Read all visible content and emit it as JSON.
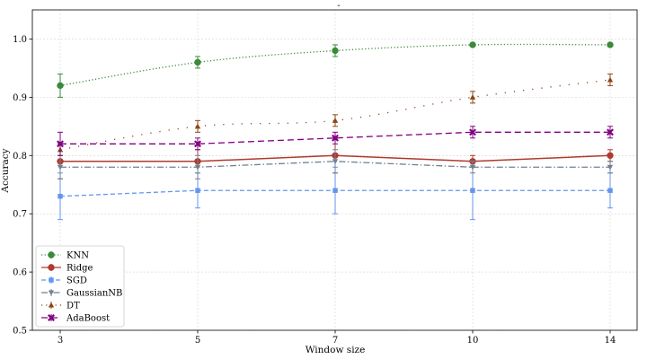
{
  "chart_data": {
    "type": "line",
    "title": "-",
    "xlabel": "Window size",
    "ylabel": "Accuracy",
    "categories": [
      "3",
      "5",
      "7",
      "10",
      "14"
    ],
    "ylim": [
      0.5,
      1.05
    ],
    "yticks": [
      "0.5",
      "0.6",
      "0.7",
      "0.8",
      "0.9",
      "1.0"
    ],
    "yticks_values": [
      0.5,
      0.6,
      0.7,
      0.8,
      0.9,
      1.0
    ],
    "grid": true,
    "legend_position": "bottom-left",
    "series": [
      {
        "name": "KNN",
        "color": "#3a8a3a",
        "dash": "dotted",
        "marker": "circle",
        "values": [
          0.92,
          0.96,
          0.98,
          0.99,
          0.99
        ],
        "errors": [
          0.02,
          0.01,
          0.01,
          0.0,
          0.0
        ]
      },
      {
        "name": "Ridge",
        "color": "#b03a2e",
        "dash": "solid",
        "marker": "circle",
        "values": [
          0.79,
          0.79,
          0.8,
          0.79,
          0.8
        ],
        "errors": [
          0.03,
          0.02,
          0.03,
          0.01,
          0.01
        ]
      },
      {
        "name": "SGD",
        "color": "#6495ed",
        "dash": "dashed",
        "marker": "square",
        "values": [
          0.73,
          0.74,
          0.74,
          0.74,
          0.74
        ],
        "errors": [
          0.04,
          0.03,
          0.04,
          0.05,
          0.03
        ]
      },
      {
        "name": "GaussianNB",
        "color": "#708090",
        "dash": "dashdot",
        "marker": "triangle-down",
        "values": [
          0.78,
          0.78,
          0.79,
          0.78,
          0.78
        ],
        "errors": [
          0.02,
          0.02,
          0.02,
          0.01,
          0.01
        ]
      },
      {
        "name": "DT",
        "color": "#8b4513",
        "dash": "loosedot",
        "marker": "triangle-up",
        "values": [
          0.81,
          0.85,
          0.86,
          0.9,
          0.93
        ],
        "errors": [
          0.01,
          0.01,
          0.01,
          0.01,
          0.01
        ]
      },
      {
        "name": "AdaBoost",
        "color": "#800080",
        "dash": "dash",
        "marker": "x",
        "values": [
          0.82,
          0.82,
          0.83,
          0.84,
          0.84
        ],
        "errors": [
          0.02,
          0.01,
          0.01,
          0.01,
          0.01
        ]
      }
    ]
  }
}
